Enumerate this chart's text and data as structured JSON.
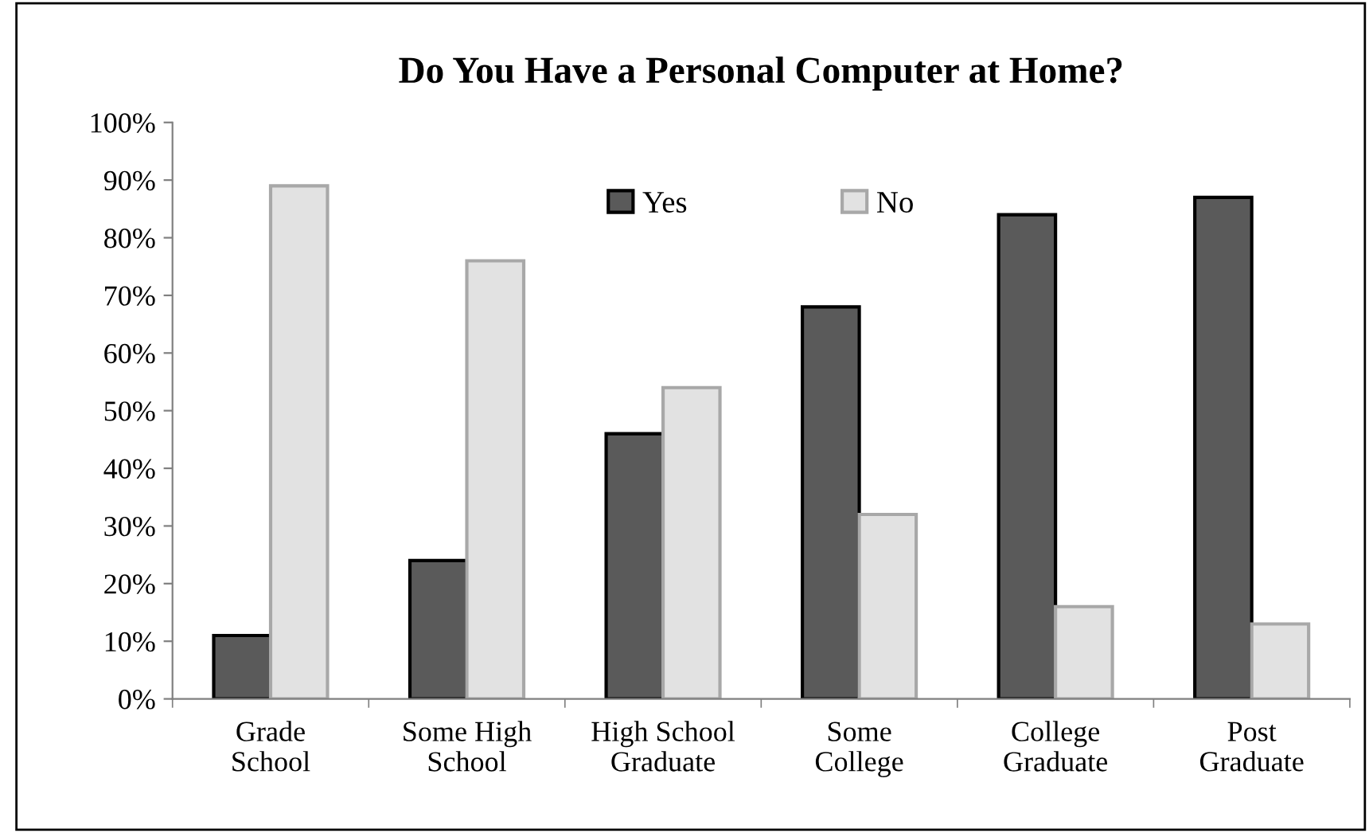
{
  "chart_data": {
    "type": "bar",
    "title": "Do You Have a Personal Computer at Home?",
    "categories": [
      "Grade\nSchool",
      "Some High\nSchool",
      "High School\nGraduate",
      "Some\nCollege",
      "College\nGraduate",
      "Post\nGraduate"
    ],
    "series": [
      {
        "name": "Yes",
        "color": "#5a5a5a",
        "values": [
          11,
          24,
          46,
          68,
          84,
          87
        ]
      },
      {
        "name": "No",
        "color": "#e2e2e2",
        "values": [
          89,
          76,
          54,
          32,
          16,
          13
        ]
      }
    ],
    "ylim": [
      0,
      100
    ],
    "yticks": [
      {
        "value": 0,
        "label": "0%"
      },
      {
        "value": 10,
        "label": "10%"
      },
      {
        "value": 20,
        "label": "20%"
      },
      {
        "value": 30,
        "label": "30%"
      },
      {
        "value": 40,
        "label": "40%"
      },
      {
        "value": 50,
        "label": "50%"
      },
      {
        "value": 60,
        "label": "60%"
      },
      {
        "value": 70,
        "label": "70%"
      },
      {
        "value": 80,
        "label": "80%"
      },
      {
        "value": 90,
        "label": "90%"
      },
      {
        "value": 100,
        "label": "100%"
      }
    ],
    "grid": false,
    "legend": "top"
  }
}
